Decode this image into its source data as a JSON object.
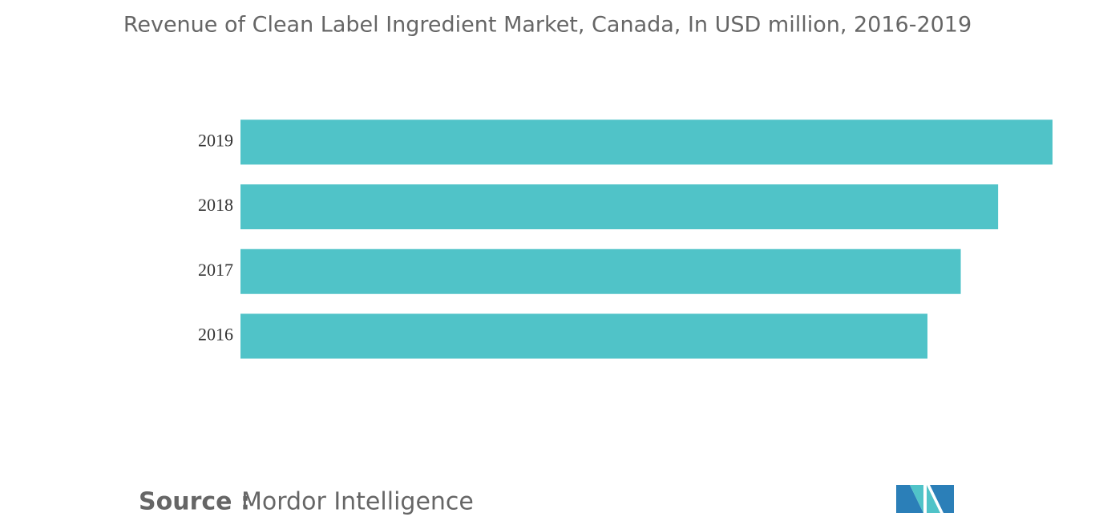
{
  "chart_data": {
    "type": "hbar",
    "title": "Revenue of Clean Label Ingredient Market, Canada, In USD million, 2016-2019",
    "categories": [
      "2019",
      "2018",
      "2017",
      "2016"
    ],
    "values": [
      100,
      93.3,
      88.7,
      84.6
    ],
    "color": "#50c3c8",
    "xlim": [
      0,
      100
    ],
    "source_label": "Source :",
    "source": "Mordor Intelligence"
  }
}
